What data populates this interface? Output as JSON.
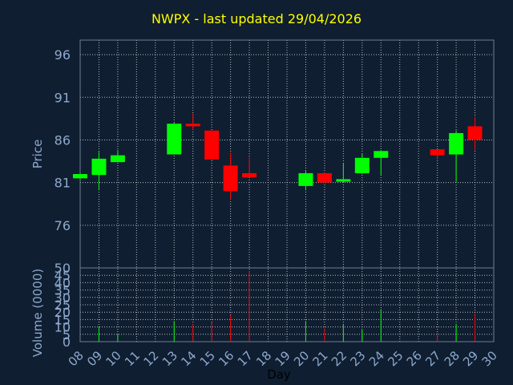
{
  "title": "NWPX - last updated 29/04/2026",
  "chart_data": [
    {
      "type": "candlestick",
      "ylabel": "Price",
      "xlabel": "Day",
      "yticks": [
        96,
        91,
        86,
        81,
        76
      ],
      "ylim": [
        71,
        97.7
      ],
      "xlim": [
        8,
        30
      ],
      "grid": true,
      "colors": {
        "up": "#00ff00",
        "down": "#ff0000",
        "grid": "#ffffff",
        "background": "#0f1e31"
      },
      "candles": [
        {
          "day": 8,
          "open": 81.5,
          "close": 82.0,
          "high": 82.1,
          "low": 81.3
        },
        {
          "day": 9,
          "open": 81.9,
          "close": 83.8,
          "high": 84.6,
          "low": 80.2
        },
        {
          "day": 10,
          "open": 83.4,
          "close": 84.2,
          "high": 84.8,
          "low": 83.4
        },
        {
          "day": 13,
          "open": 84.3,
          "close": 87.9,
          "high": 88.0,
          "low": 84.3
        },
        {
          "day": 14,
          "open": 87.9,
          "close": 87.6,
          "high": 89.1,
          "low": 87.2
        },
        {
          "day": 15,
          "open": 87.1,
          "close": 83.7,
          "high": 87.1,
          "low": 83.6
        },
        {
          "day": 16,
          "open": 83.0,
          "close": 80.0,
          "high": 84.5,
          "low": 79.0
        },
        {
          "day": 17,
          "open": 82.1,
          "close": 81.6,
          "high": 84.0,
          "low": 81.6
        },
        {
          "day": 20,
          "open": 80.6,
          "close": 82.1,
          "high": 82.4,
          "low": 80.1
        },
        {
          "day": 21,
          "open": 82.1,
          "close": 81.0,
          "high": 82.2,
          "low": 81.0
        },
        {
          "day": 22,
          "open": 81.1,
          "close": 81.4,
          "high": 83.3,
          "low": 81.0
        },
        {
          "day": 23,
          "open": 82.1,
          "close": 83.9,
          "high": 84.4,
          "low": 82.0
        },
        {
          "day": 24,
          "open": 83.9,
          "close": 84.7,
          "high": 84.8,
          "low": 81.9
        },
        {
          "day": 27,
          "open": 84.9,
          "close": 84.2,
          "high": 84.9,
          "low": 83.7
        },
        {
          "day": 28,
          "open": 84.3,
          "close": 86.8,
          "high": 87.1,
          "low": 81.1
        },
        {
          "day": 29,
          "open": 87.6,
          "close": 86.0,
          "high": 88.7,
          "low": 84.8
        }
      ]
    },
    {
      "type": "bar",
      "ylabel": "Volume (0000)",
      "yticks": [
        50,
        45,
        40,
        35,
        30,
        25,
        20,
        15,
        10,
        5,
        0
      ],
      "ylim": [
        0,
        50
      ],
      "xticks": [
        "08",
        "09",
        "10",
        "11",
        "12",
        "13",
        "14",
        "15",
        "16",
        "17",
        "18",
        "19",
        "20",
        "21",
        "22",
        "23",
        "24",
        "25",
        "26",
        "27",
        "28",
        "29",
        "30"
      ],
      "volumes": [
        {
          "day": 9,
          "value": 10,
          "dir": "up"
        },
        {
          "day": 10,
          "value": 5,
          "dir": "up"
        },
        {
          "day": 13,
          "value": 14,
          "dir": "up"
        },
        {
          "day": 14,
          "value": 12,
          "dir": "down"
        },
        {
          "day": 15,
          "value": 13,
          "dir": "down"
        },
        {
          "day": 16,
          "value": 18,
          "dir": "down"
        },
        {
          "day": 17,
          "value": 48,
          "dir": "down"
        },
        {
          "day": 20,
          "value": 14,
          "dir": "up"
        },
        {
          "day": 21,
          "value": 9,
          "dir": "down"
        },
        {
          "day": 22,
          "value": 12,
          "dir": "up"
        },
        {
          "day": 23,
          "value": 8,
          "dir": "up"
        },
        {
          "day": 24,
          "value": 22,
          "dir": "up"
        },
        {
          "day": 27,
          "value": 6,
          "dir": "down"
        },
        {
          "day": 28,
          "value": 12,
          "dir": "up"
        },
        {
          "day": 29,
          "value": 19,
          "dir": "down"
        }
      ]
    }
  ]
}
